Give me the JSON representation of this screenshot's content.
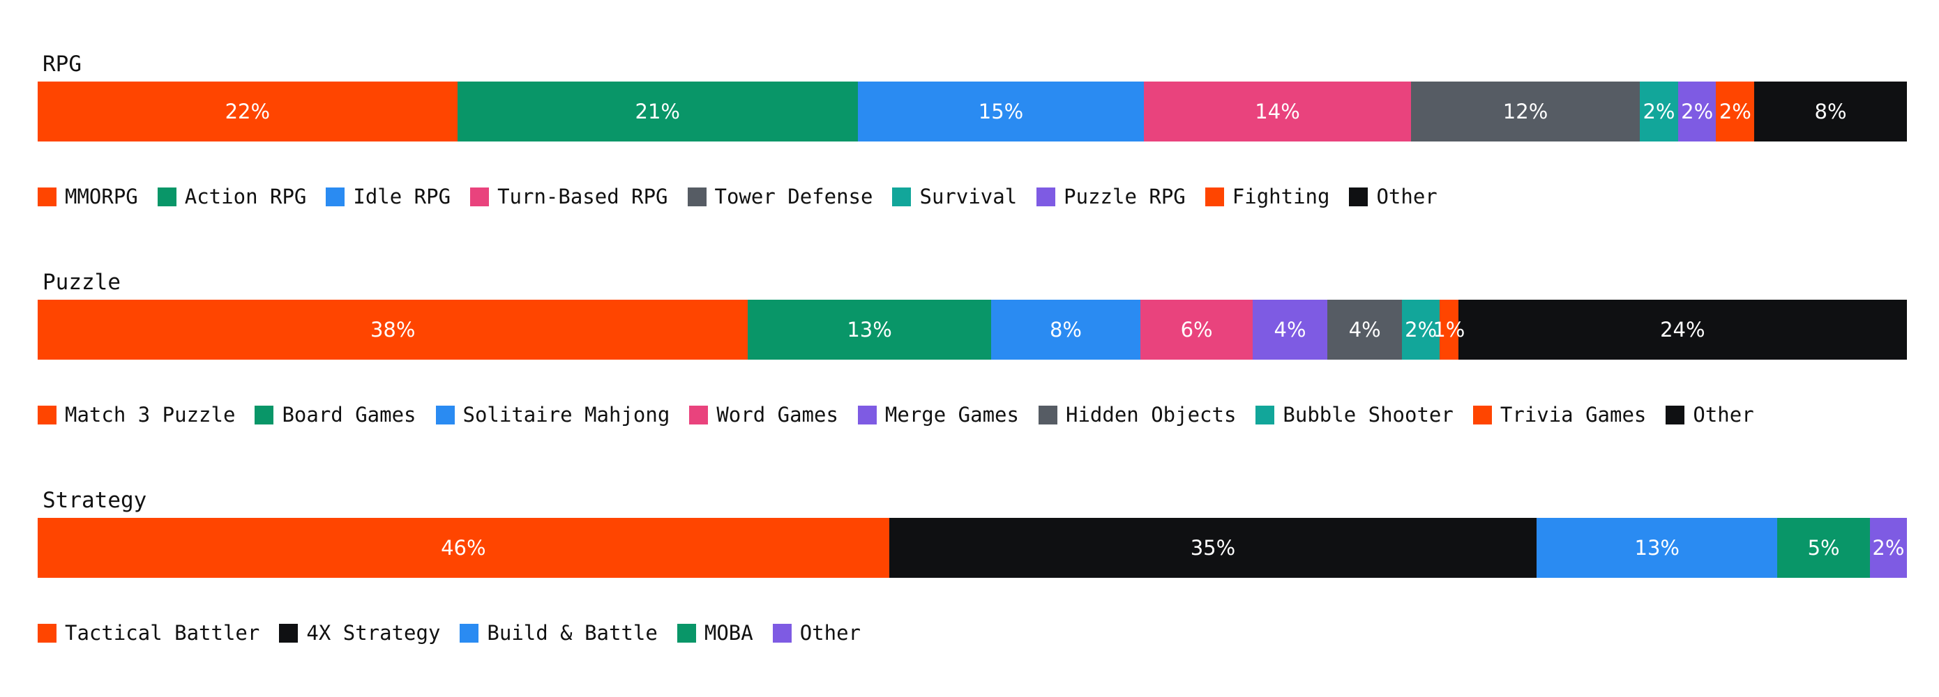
{
  "colors": {
    "orange": "#FF4500",
    "green": "#099668",
    "blue": "#2A8BF2",
    "pink": "#E9437D",
    "gray": "#565C64",
    "teal": "#12A69A",
    "purple": "#7E5BE3",
    "black": "#0F1012"
  },
  "chart_data": [
    {
      "type": "bar",
      "orientation": "horizontal-stacked-100",
      "title": "RPG",
      "segments": [
        {
          "name": "MMORPG",
          "value": 22,
          "label": "22%",
          "color": "#FF4500"
        },
        {
          "name": "Action RPG",
          "value": 21,
          "label": "21%",
          "color": "#099668"
        },
        {
          "name": "Idle RPG",
          "value": 15,
          "label": "15%",
          "color": "#2A8BF2"
        },
        {
          "name": "Turn-Based RPG",
          "value": 14,
          "label": "14%",
          "color": "#E9437D"
        },
        {
          "name": "Tower Defense",
          "value": 12,
          "label": "12%",
          "color": "#565C64"
        },
        {
          "name": "Survival",
          "value": 2,
          "label": "2%",
          "color": "#12A69A"
        },
        {
          "name": "Puzzle RPG",
          "value": 2,
          "label": "2%",
          "color": "#7E5BE3"
        },
        {
          "name": "Fighting",
          "value": 2,
          "label": "2%",
          "color": "#FF4500"
        },
        {
          "name": "Other",
          "value": 8,
          "label": "8%",
          "color": "#0F1012"
        }
      ],
      "legend_position": "bottom"
    },
    {
      "type": "bar",
      "orientation": "horizontal-stacked-100",
      "title": "Puzzle",
      "segments": [
        {
          "name": "Match 3 Puzzle",
          "value": 38,
          "label": "38%",
          "color": "#FF4500"
        },
        {
          "name": "Board Games",
          "value": 13,
          "label": "13%",
          "color": "#099668"
        },
        {
          "name": "Solitaire Mahjong",
          "value": 8,
          "label": "8%",
          "color": "#2A8BF2"
        },
        {
          "name": "Word Games",
          "value": 6,
          "label": "6%",
          "color": "#E9437D"
        },
        {
          "name": "Merge Games",
          "value": 4,
          "label": "4%",
          "color": "#7E5BE3"
        },
        {
          "name": "Hidden Objects",
          "value": 4,
          "label": "4%",
          "color": "#565C64"
        },
        {
          "name": "Bubble Shooter",
          "value": 2,
          "label": "2%",
          "color": "#12A69A"
        },
        {
          "name": "Trivia Games",
          "value": 1,
          "label": "1%",
          "color": "#FF4500"
        },
        {
          "name": "Other",
          "value": 24,
          "label": "24%",
          "color": "#0F1012"
        }
      ],
      "legend_position": "bottom"
    },
    {
      "type": "bar",
      "orientation": "horizontal-stacked-100",
      "title": "Strategy",
      "segments": [
        {
          "name": "Tactical Battler",
          "value": 46,
          "label": "46%",
          "color": "#FF4500"
        },
        {
          "name": "4X Strategy",
          "value": 35,
          "label": "35%",
          "color": "#0F1012"
        },
        {
          "name": "Build & Battle",
          "value": 13,
          "label": "13%",
          "color": "#2A8BF2"
        },
        {
          "name": "MOBA",
          "value": 5,
          "label": "5%",
          "color": "#099668"
        },
        {
          "name": "Other",
          "value": 2,
          "label": "2%",
          "color": "#7E5BE3"
        }
      ],
      "legend_position": "bottom"
    }
  ]
}
